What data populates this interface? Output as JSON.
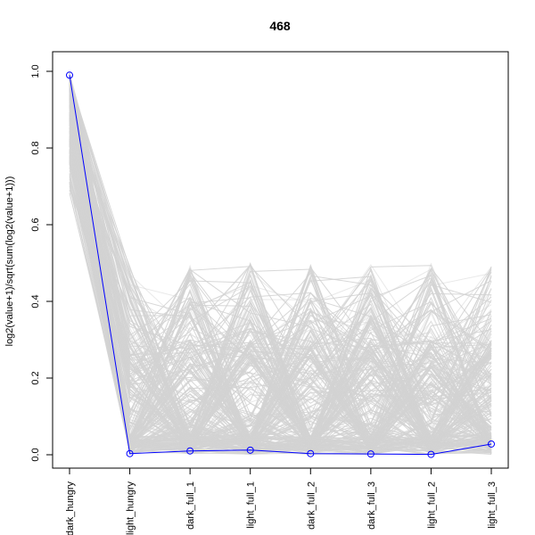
{
  "chart_data": {
    "type": "line",
    "title": "468",
    "xlabel": "",
    "ylabel": "log2(value+1)/sqrt(sum(log2(value+1)))",
    "categories": [
      "dark_hungry",
      "light_hungry",
      "dark_full_1",
      "light_full_1",
      "dark_full_2",
      "dark_full_3",
      "light_full_2",
      "light_full_3"
    ],
    "ylim": [
      0.0,
      1.0
    ],
    "yticks": [
      "0.0",
      "0.2",
      "0.4",
      "0.6",
      "0.8",
      "1.0"
    ],
    "grid": false,
    "legend": "none",
    "series": [
      {
        "values": [
          0.99,
          0.003,
          0.01,
          0.012,
          0.003,
          0.002,
          0.001,
          0.028
        ],
        "color": "#0000ff",
        "marker": "open-circle"
      }
    ],
    "background_lines": {
      "color": "#d3d3d3",
      "description_range_start": [
        0.67,
        1.0
      ],
      "range_end": [
        0.0,
        0.5
      ]
    }
  }
}
